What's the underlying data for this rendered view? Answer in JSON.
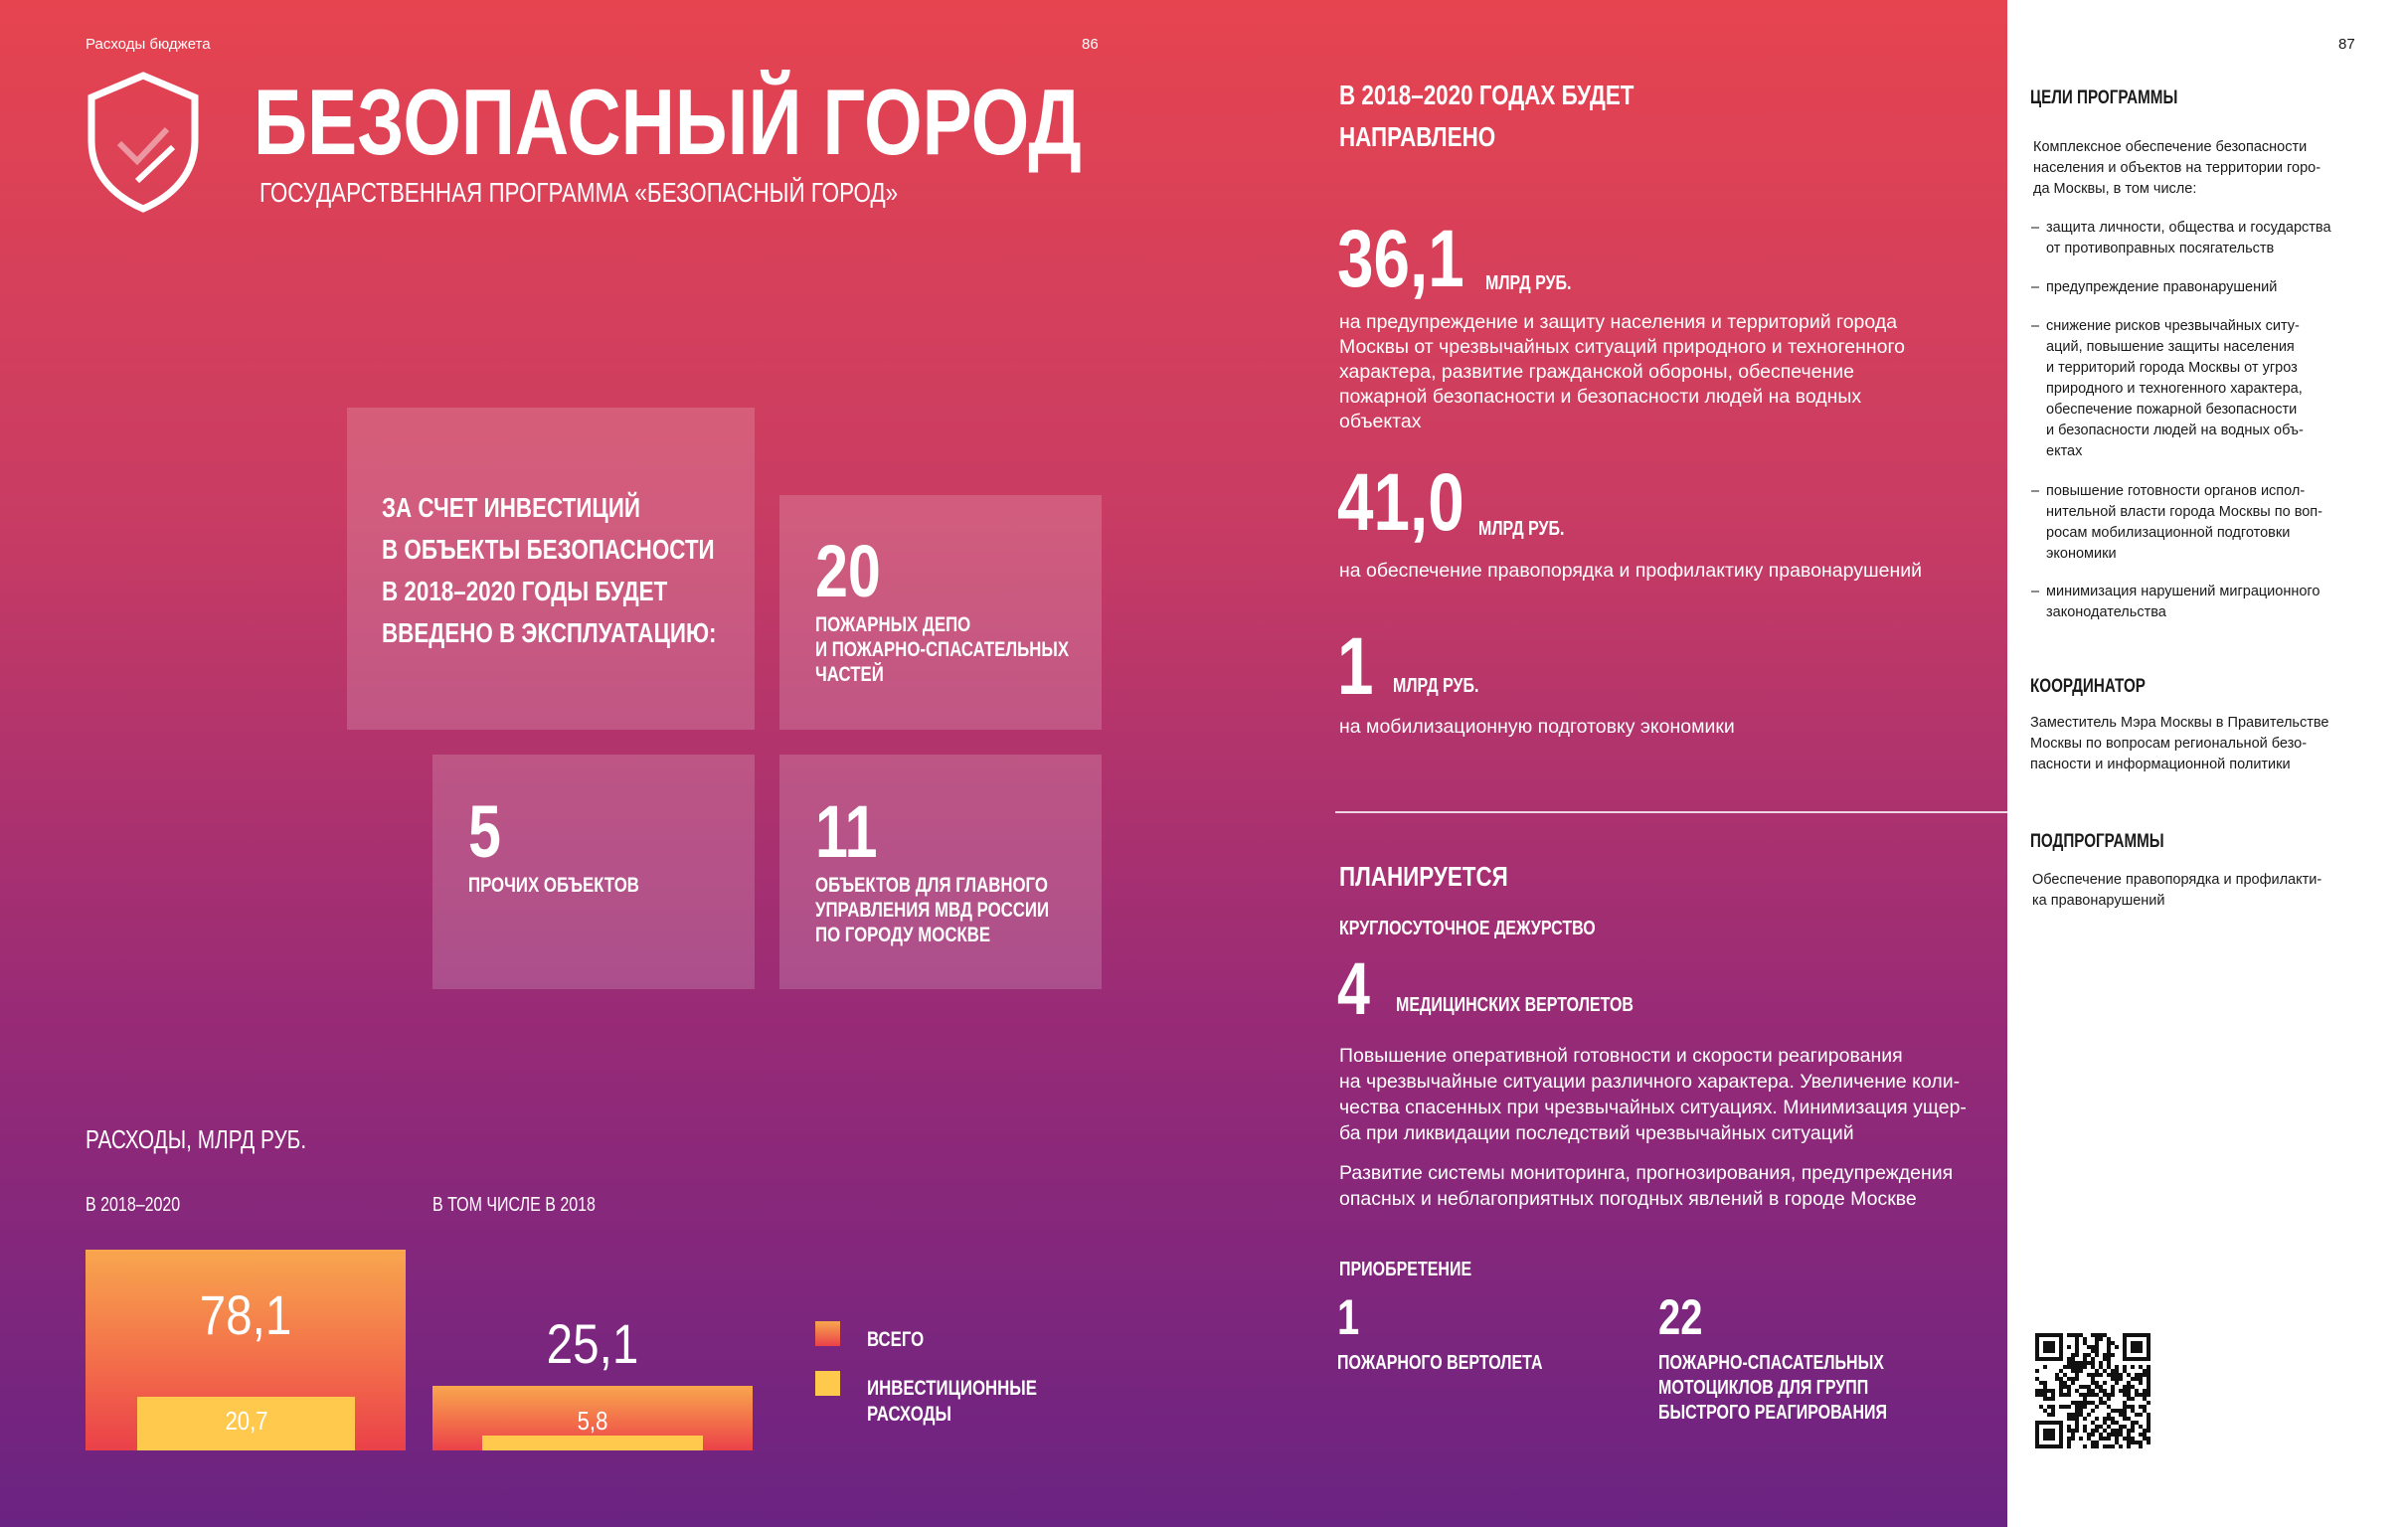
{
  "header": {
    "section": "Расходы бюджета",
    "page_left": "86",
    "page_right": "87"
  },
  "title": "БЕЗОПАСНЫЙ ГОРОД",
  "subtitle": "ГОСУДАРСТВЕННАЯ ПРОГРАММА «БЕЗОПАСНЫЙ ГОРОД»",
  "investments": {
    "intro": [
      "ЗА СЧЕТ ИНВЕСТИЦИЙ",
      "В ОБЪЕКТЫ БЕЗОПАСНОСТИ",
      "В 2018–2020 ГОДЫ БУДЕТ",
      "ВВЕДЕНО В ЭКСПЛУАТАЦИЮ:"
    ],
    "items": [
      {
        "value": 20,
        "label": [
          "ПОЖАРНЫХ ДЕПО",
          "И ПОЖАРНО-СПАСАТЕЛЬНЫХ",
          "ЧАСТЕЙ"
        ]
      },
      {
        "value": 5,
        "label": [
          "ПРОЧИХ ОБЪЕКТОВ"
        ]
      },
      {
        "value": 11,
        "label": [
          "ОБЪЕКТОВ ДЛЯ ГЛАВНОГО",
          "УПРАВЛЕНИЯ МВД РОССИИ",
          "ПО ГОРОДУ МОСКВЕ"
        ]
      }
    ]
  },
  "expenses": {
    "title": "РАСХОДЫ, МЛРД РУБ.",
    "groups": [
      {
        "label": "В 2018–2020",
        "total": 78.1,
        "total_label": "78,1",
        "investment": 20.7,
        "investment_label": "20,7"
      },
      {
        "label": "В ТОМ ЧИСЛЕ В 2018",
        "total": 25.1,
        "total_label": "25,1",
        "investment": 5.8,
        "investment_label": "5,8"
      }
    ],
    "legend": [
      "ВСЕГО",
      "ИНВЕСТИЦИОННЫЕ РАСХОДЫ"
    ],
    "colors": {
      "total": "#f26a4a",
      "investment": "#ffc94d"
    }
  },
  "funding": {
    "heading": [
      "В 2018–2020 ГОДАХ БУДЕТ",
      "НАПРАВЛЕНО"
    ],
    "items": [
      {
        "amount": "36,1",
        "unit": "МЛРД РУБ.",
        "text": [
          "на предупреждение и защиту населения и территорий города",
          "Москвы от чрезвычайных ситуаций природного и техногенного",
          "характера, развитие гражданской обороны, обеспечение",
          "пожарной безопасности и безопасности людей на водных",
          "объектах"
        ]
      },
      {
        "amount": "41,0",
        "unit": "МЛРД РУБ.",
        "text": [
          "на обеспечение правопорядка и профилактику правонарушений"
        ]
      },
      {
        "amount": "1",
        "unit": "МЛРД РУБ.",
        "text": [
          "на мобилизационную подготовку экономики"
        ]
      }
    ]
  },
  "planned": {
    "heading": "ПЛАНИРУЕТСЯ",
    "subheading": "КРУГЛОСУТОЧНОЕ ДЕЖУРСТВО",
    "count": 4,
    "count_label": "МЕДИЦИНСКИХ ВЕРТОЛЕТОВ",
    "paragraphs": [
      [
        "Повышение оперативной готовности и скорости реагирования",
        "на чрезвычайные ситуации различного характера. Увеличение коли-",
        "чества спасенных при чрезвычайных ситуациях. Минимизация ущер-",
        "ба при ликвидации последствий чрезвычайных ситуаций"
      ],
      [
        "Развитие системы мониторинга, прогнозирования, предупреждения",
        "опасных и неблагоприятных погодных явлений в городе Москве"
      ]
    ],
    "purchase": {
      "heading": "ПРИОБРЕТЕНИЕ",
      "items": [
        {
          "value": 1,
          "label": [
            "ПОЖАРНОГО ВЕРТОЛЕТА"
          ]
        },
        {
          "value": 22,
          "label": [
            "ПОЖАРНО-СПАСАТЕЛЬНЫХ",
            "МОТОЦИКЛОВ ДЛЯ ГРУПП",
            "БЫСТРОГО РЕАГИРОВАНИЯ"
          ]
        }
      ]
    }
  },
  "sidebar": {
    "goals": {
      "heading": "ЦЕЛИ ПРОГРАММЫ",
      "intro": [
        "Комплексное обеспечение безопасности",
        "населения и объектов на территории горо-",
        "да Москвы, в том числе:"
      ],
      "bullets": [
        [
          "защита личности, общества и государства",
          "от противоправных посягательств"
        ],
        [
          "предупреждение правонарушений"
        ],
        [
          "снижение рисков чрезвычайных ситу-",
          "аций, повышение защиты населения",
          "и территорий города Москвы от угроз",
          "природного и техногенного характера,",
          "обеспечение пожарной безопасности",
          "и безопасности людей на водных объ-",
          "ектах"
        ],
        [
          "повышение готовности органов испол-",
          "нительной власти города Москвы по воп-",
          "росам мобилизационной подготовки",
          "экономики"
        ],
        [
          "минимизация нарушений миграционного",
          "законодательства"
        ]
      ]
    },
    "coordinator": {
      "heading": "КООРДИНАТОР",
      "text": [
        "Заместитель Мэра Москвы в Правительстве",
        "Москвы по вопросам региональной безо-",
        "пасности и информационной политики"
      ]
    },
    "subprograms": {
      "heading": "ПОДПРОГРАММЫ",
      "text": [
        "Обеспечение правопорядка и профилакти-",
        "ка правонарушений"
      ]
    }
  }
}
